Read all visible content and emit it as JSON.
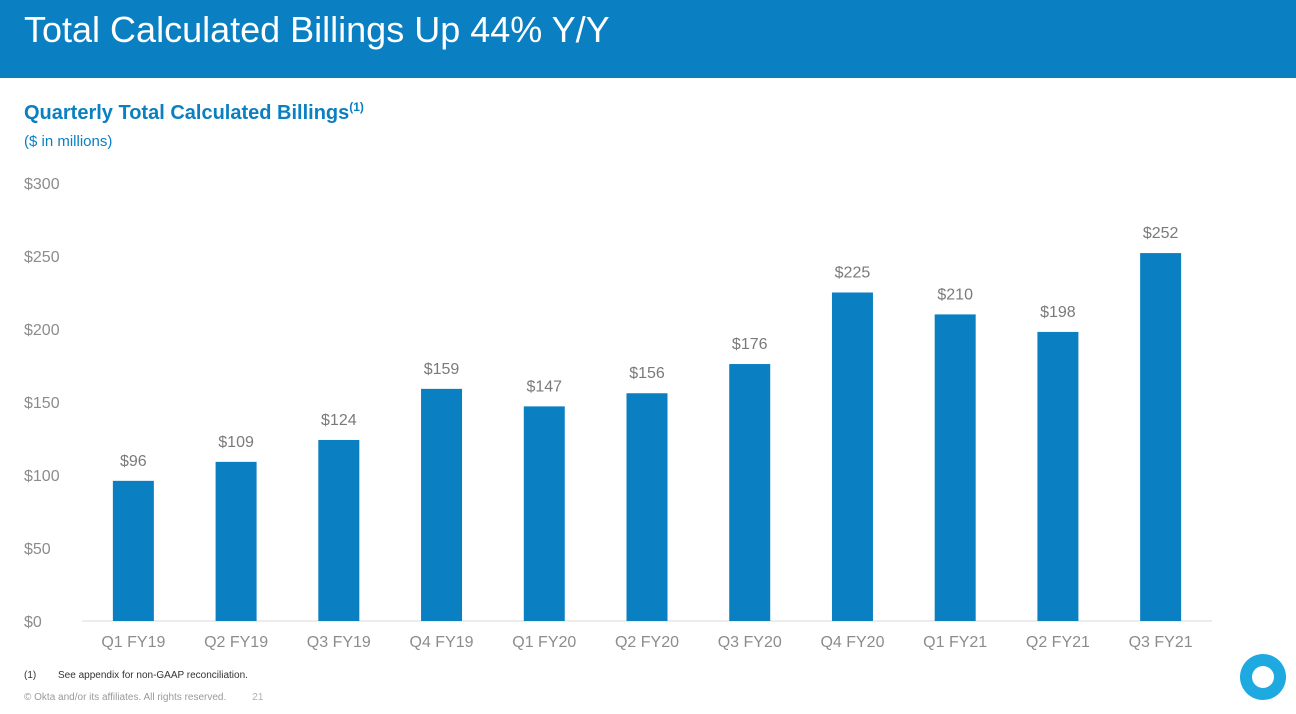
{
  "header": {
    "title": "Total Calculated Billings Up 44% Y/Y"
  },
  "chart_header": {
    "title": "Quarterly Total Calculated Billings",
    "title_sup": "(1)",
    "units": "($ in millions)"
  },
  "chart_data": {
    "type": "bar",
    "title": "Quarterly Total Calculated Billings",
    "subtitle": "($ in millions)",
    "categories": [
      "Q1 FY19",
      "Q2 FY19",
      "Q3 FY19",
      "Q4 FY19",
      "Q1 FY20",
      "Q2 FY20",
      "Q3 FY20",
      "Q4 FY20",
      "Q1 FY21",
      "Q2 FY21",
      "Q3 FY21"
    ],
    "values": [
      96,
      109,
      124,
      159,
      147,
      156,
      176,
      225,
      210,
      198,
      252
    ],
    "data_labels": [
      "$96",
      "$109",
      "$124",
      "$159",
      "$147",
      "$156",
      "$176",
      "$225",
      "$210",
      "$198",
      "$252"
    ],
    "y_ticks": [
      0,
      50,
      100,
      150,
      200,
      250,
      300
    ],
    "y_tick_labels": [
      "$0",
      "$50",
      "$100",
      "$150",
      "$200",
      "$250",
      "$300"
    ],
    "ylim": [
      0,
      300
    ],
    "grid": false,
    "legend": "none",
    "bar_color": "#0a7fc2"
  },
  "footer": {
    "footnote_number": "(1)",
    "footnote_text": "See appendix for non-GAAP reconciliation.",
    "copyright": "© Okta and/or its affiliates. All rights reserved.",
    "page_number": "21"
  },
  "colors": {
    "brand_blue": "#0a7fc2",
    "logo_blue": "#1ea9e1"
  },
  "logo": {
    "icon": "okta-logo-icon"
  }
}
